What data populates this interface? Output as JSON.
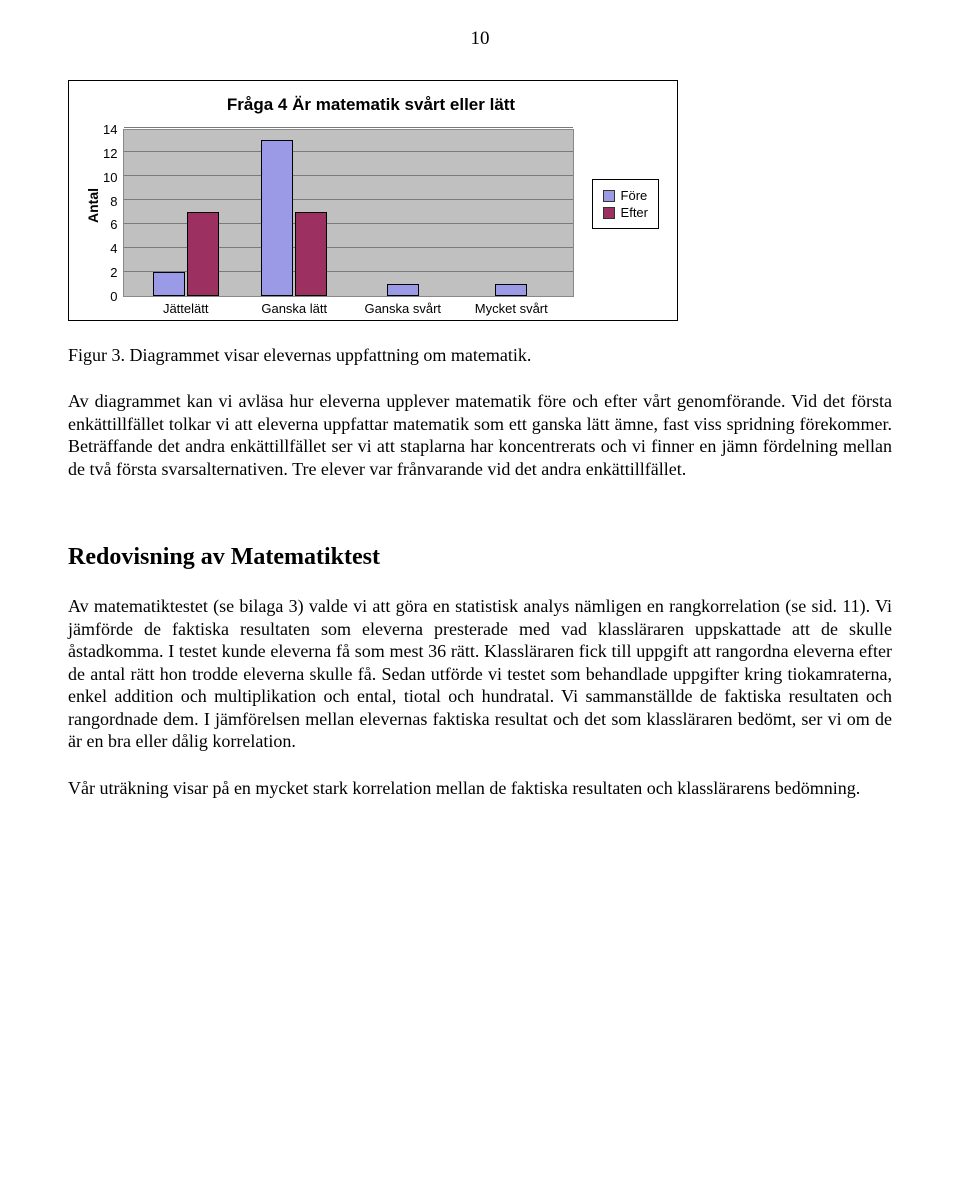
{
  "page_number": "10",
  "chart": {
    "type": "bar-grouped",
    "title": "Fråga 4  Är matematik svårt eller lätt",
    "y_label": "Antal",
    "ylim": [
      0,
      14
    ],
    "ytick_step": 2,
    "y_ticks": [
      "14",
      "12",
      "10",
      "8",
      "6",
      "4",
      "2",
      "0"
    ],
    "categories": [
      "Jättelätt",
      "Ganska lätt",
      "Ganska svårt",
      "Mycket svårt"
    ],
    "series": [
      {
        "name": "Före",
        "color": "#9a9ae6",
        "values": [
          2,
          13,
          1,
          1
        ]
      },
      {
        "name": "Efter",
        "color": "#9c3060",
        "values": [
          7,
          7,
          0,
          0
        ]
      }
    ],
    "plot_background": "#c0c0c0",
    "grid_color": "#7a7a7a",
    "bar_border": "#000000",
    "legend_position": "right"
  },
  "caption": "Figur 3. Diagrammet visar elevernas uppfattning om matematik.",
  "paragraph1": "Av diagrammet kan vi avläsa hur eleverna upplever matematik före och efter vårt genomförande. Vid det första enkättillfället tolkar vi att eleverna uppfattar matematik som ett ganska lätt ämne, fast viss spridning förekommer. Beträffande det andra enkättillfället ser vi att staplarna har koncentrerats och vi finner en jämn fördelning mellan de två första svarsalternativen. Tre elever var frånvarande vid det andra enkättillfället.",
  "section_heading": "Redovisning av Matematiktest",
  "paragraph2": "Av matematiktestet (se bilaga 3) valde vi att göra en statistisk analys nämligen en rangkorrelation (se sid. 11). Vi jämförde de faktiska resultaten som eleverna presterade med vad klassläraren uppskattade att de skulle åstadkomma. I testet kunde eleverna få som mest 36 rätt. Klassläraren fick till uppgift att rangordna eleverna efter de antal rätt hon trodde eleverna skulle få. Sedan utförde vi testet som behandlade uppgifter kring tiokamraterna, enkel addition och multiplikation och ental, tiotal och hundratal. Vi sammanställde de faktiska resultaten och rangordnade dem. I jämförelsen mellan elevernas faktiska resultat och det som klassläraren bedömt, ser vi om de är en bra eller dålig korrelation.",
  "paragraph3": "Vår uträkning visar på en mycket stark korrelation mellan de faktiska resultaten och klasslärarens bedömning."
}
